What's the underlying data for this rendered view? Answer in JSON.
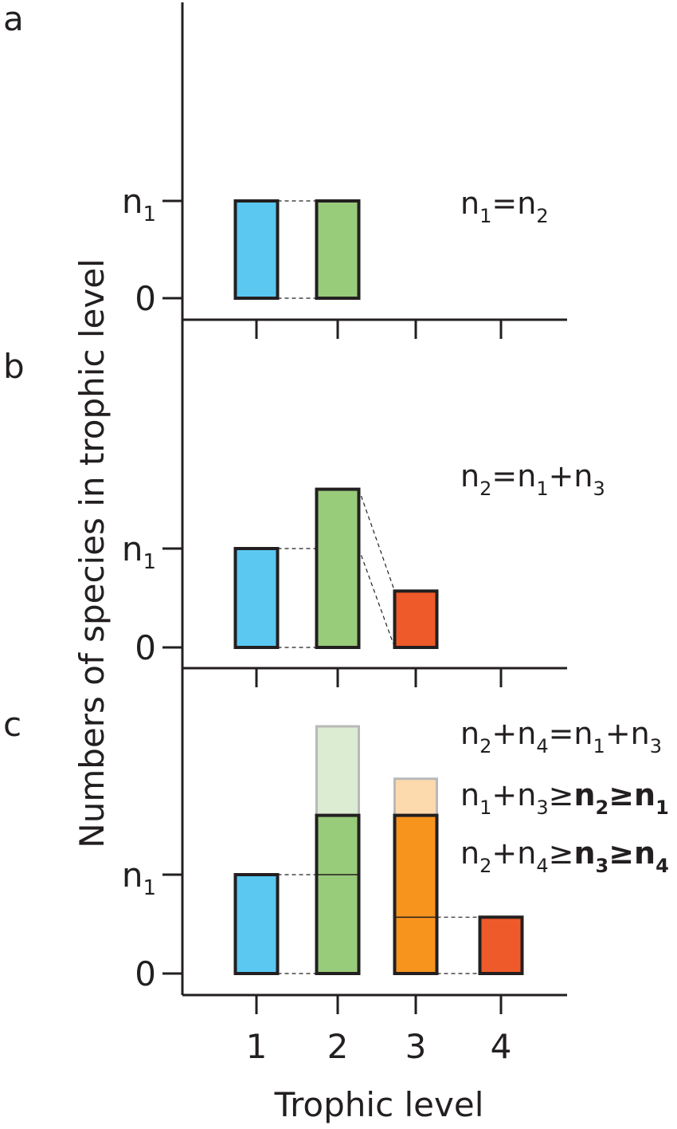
{
  "colors": {
    "level1": "#5bc8f2",
    "level2": "#98cb7a",
    "level2_extension": "#dcecd3",
    "level3_orange": "#f7941d",
    "level3_extension": "#fdd9ae",
    "level3_red": "#ef5a2a",
    "level4": "#ef5a2a",
    "outline": "#231f20",
    "extension_outline": "#b9b9b9"
  },
  "chart_data": [
    {
      "type": "bar",
      "panel": "a",
      "categories": [
        "1",
        "2"
      ],
      "values": [
        1.0,
        1.0
      ],
      "y_ticks": [
        {
          "value": 0,
          "label": "0",
          "sub": ""
        },
        {
          "value": 1,
          "label": "n",
          "sub": "1"
        }
      ],
      "equations": [
        {
          "parts": [
            {
              "t": "n"
            },
            {
              "t": "1",
              "sub": true
            },
            {
              "t": "=n"
            },
            {
              "t": "2",
              "sub": true
            }
          ]
        }
      ]
    },
    {
      "type": "bar",
      "panel": "b",
      "categories": [
        "1",
        "2",
        "3"
      ],
      "values": [
        1.0,
        1.6,
        0.57
      ],
      "y_ticks": [
        {
          "value": 0,
          "label": "0",
          "sub": ""
        },
        {
          "value": 1,
          "label": "n",
          "sub": "1"
        }
      ],
      "equations": [
        {
          "parts": [
            {
              "t": "n"
            },
            {
              "t": "2",
              "sub": true
            },
            {
              "t": "=n"
            },
            {
              "t": "1",
              "sub": true
            },
            {
              "t": "+n"
            },
            {
              "t": "3",
              "sub": true
            }
          ]
        }
      ]
    },
    {
      "type": "bar",
      "panel": "c",
      "categories": [
        "1",
        "2",
        "3",
        "4"
      ],
      "values": [
        1.0,
        1.6,
        1.6,
        0.57
      ],
      "range_max": [
        1.0,
        2.5,
        1.97,
        0.57
      ],
      "y_ticks": [
        {
          "value": 0,
          "label": "0",
          "sub": ""
        },
        {
          "value": 1,
          "label": "n",
          "sub": "1"
        }
      ],
      "x_tick_labels": [
        "1",
        "2",
        "3",
        "4"
      ],
      "equations": [
        {
          "parts": [
            {
              "t": "n"
            },
            {
              "t": "2",
              "sub": true
            },
            {
              "t": "+n"
            },
            {
              "t": "4",
              "sub": true
            },
            {
              "t": "=n"
            },
            {
              "t": "1",
              "sub": true
            },
            {
              "t": "+n"
            },
            {
              "t": "3",
              "sub": true
            }
          ]
        },
        {
          "parts": [
            {
              "t": "n"
            },
            {
              "t": "1",
              "sub": true
            },
            {
              "t": "+n"
            },
            {
              "t": "3",
              "sub": true
            },
            {
              "t": "≥"
            },
            {
              "t": "n",
              "bold": true
            },
            {
              "t": "2",
              "sub": true,
              "bold": true
            },
            {
              "t": "≥n",
              "bold": true
            },
            {
              "t": "1",
              "sub": true,
              "bold": true
            }
          ]
        },
        {
          "parts": [
            {
              "t": "n"
            },
            {
              "t": "2",
              "sub": true
            },
            {
              "t": "+n"
            },
            {
              "t": "4",
              "sub": true
            },
            {
              "t": "≥"
            },
            {
              "t": "n",
              "bold": true
            },
            {
              "t": "3",
              "sub": true,
              "bold": true
            },
            {
              "t": "≥n",
              "bold": true
            },
            {
              "t": "4",
              "sub": true,
              "bold": true
            }
          ]
        }
      ]
    }
  ],
  "xlabel": "Trophic level",
  "ylabel": "Numbers of species in trophic level"
}
